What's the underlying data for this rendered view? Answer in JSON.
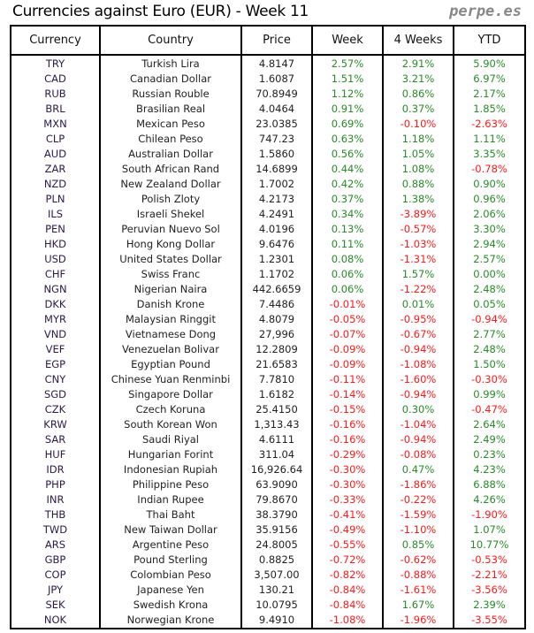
{
  "title": "Currencies against Euro (EUR) - Week 11",
  "brand": "perpe.es",
  "colors": {
    "positive": "#2a8a2a",
    "negative": "#ff1a1a"
  },
  "headers": [
    "Currency",
    "Country",
    "Price",
    "Week",
    "4 Weeks",
    "YTD"
  ],
  "rows": [
    [
      "TRY",
      "Turkish Lira",
      "4.8147",
      "2.57%",
      "2.91%",
      "5.90%"
    ],
    [
      "CAD",
      "Canadian Dollar",
      "1.6087",
      "1.51%",
      "3.21%",
      "6.97%"
    ],
    [
      "RUB",
      "Russian Rouble",
      "70.8949",
      "1.12%",
      "0.86%",
      "2.17%"
    ],
    [
      "BRL",
      "Brasilian Real",
      "4.0464",
      "0.91%",
      "0.37%",
      "1.85%"
    ],
    [
      "MXN",
      "Mexican Peso",
      "23.0385",
      "0.69%",
      "-0.10%",
      "-2.63%"
    ],
    [
      "CLP",
      "Chilean Peso",
      "747.23",
      "0.63%",
      "1.18%",
      "1.11%"
    ],
    [
      "AUD",
      "Australian Dollar",
      "1.5860",
      "0.56%",
      "1.05%",
      "3.35%"
    ],
    [
      "ZAR",
      "South African Rand",
      "14.6899",
      "0.44%",
      "1.08%",
      "-0.78%"
    ],
    [
      "NZD",
      "New Zealand Dollar",
      "1.7002",
      "0.42%",
      "0.88%",
      "0.90%"
    ],
    [
      "PLN",
      "Polish Zloty",
      "4.2173",
      "0.37%",
      "1.38%",
      "0.96%"
    ],
    [
      "ILS",
      "Israeli Shekel",
      "4.2491",
      "0.34%",
      "-3.89%",
      "2.06%"
    ],
    [
      "PEN",
      "Peruvian Nuevo Sol",
      "4.0196",
      "0.13%",
      "-0.57%",
      "3.30%"
    ],
    [
      "HKD",
      "Hong Kong Dollar",
      "9.6476",
      "0.11%",
      "-1.03%",
      "2.94%"
    ],
    [
      "USD",
      "United States Dollar",
      "1.2301",
      "0.08%",
      "-1.31%",
      "2.57%"
    ],
    [
      "CHF",
      "Swiss Franc",
      "1.1702",
      "0.06%",
      "1.57%",
      "0.00%"
    ],
    [
      "NGN",
      "Nigerian Naira",
      "442.6659",
      "0.06%",
      "-1.22%",
      "2.48%"
    ],
    [
      "DKK",
      "Danish Krone",
      "7.4486",
      "-0.01%",
      "0.01%",
      "0.05%"
    ],
    [
      "MYR",
      "Malaysian Ringgit",
      "4.8079",
      "-0.05%",
      "-0.95%",
      "-0.94%"
    ],
    [
      "VND",
      "Vietnamese Dong",
      "27,996",
      "-0.07%",
      "-0.67%",
      "2.77%"
    ],
    [
      "VEF",
      "Venezuelan Bolivar",
      "12.2809",
      "-0.09%",
      "-0.94%",
      "2.48%"
    ],
    [
      "EGP",
      "Egyptian Pound",
      "21.6583",
      "-0.09%",
      "-1.08%",
      "1.50%"
    ],
    [
      "CNY",
      "Chinese Yuan Renminbi",
      "7.7810",
      "-0.11%",
      "-1.60%",
      "-0.30%"
    ],
    [
      "SGD",
      "Singapore Dollar",
      "1.6182",
      "-0.14%",
      "-0.94%",
      "0.99%"
    ],
    [
      "CZK",
      "Czech Koruna",
      "25.4150",
      "-0.15%",
      "0.30%",
      "-0.47%"
    ],
    [
      "KRW",
      "South Korean Won",
      "1,313.43",
      "-0.16%",
      "-1.04%",
      "2.64%"
    ],
    [
      "SAR",
      "Saudi Riyal",
      "4.6111",
      "-0.16%",
      "-0.94%",
      "2.49%"
    ],
    [
      "HUF",
      "Hungarian Forint",
      "311.04",
      "-0.29%",
      "-0.08%",
      "0.23%"
    ],
    [
      "IDR",
      "Indonesian Rupiah",
      "16,926.64",
      "-0.30%",
      "0.47%",
      "4.23%"
    ],
    [
      "PHP",
      "Philippine Peso",
      "63.9090",
      "-0.30%",
      "-1.86%",
      "6.88%"
    ],
    [
      "INR",
      "Indian Rupee",
      "79.8670",
      "-0.33%",
      "-0.22%",
      "4.26%"
    ],
    [
      "THB",
      "Thai Baht",
      "38.3790",
      "-0.41%",
      "-1.59%",
      "-1.90%"
    ],
    [
      "TWD",
      "New Taiwan Dollar",
      "35.9156",
      "-0.49%",
      "-1.10%",
      "1.07%"
    ],
    [
      "ARS",
      "Argentine Peso",
      "24.8005",
      "-0.55%",
      "0.85%",
      "10.77%"
    ],
    [
      "GBP",
      "Pound Sterling",
      "0.8825",
      "-0.72%",
      "-0.62%",
      "-0.53%"
    ],
    [
      "COP",
      "Colombian Peso",
      "3,507.00",
      "-0.82%",
      "-0.88%",
      "-2.21%"
    ],
    [
      "JPY",
      "Japanese Yen",
      "130.21",
      "-0.84%",
      "-1.61%",
      "-3.56%"
    ],
    [
      "SEK",
      "Swedish Krona",
      "10.0795",
      "-0.84%",
      "1.67%",
      "2.39%"
    ],
    [
      "NOK",
      "Norwegian Krone",
      "9.4910",
      "-1.08%",
      "-1.96%",
      "-3.55%"
    ]
  ]
}
